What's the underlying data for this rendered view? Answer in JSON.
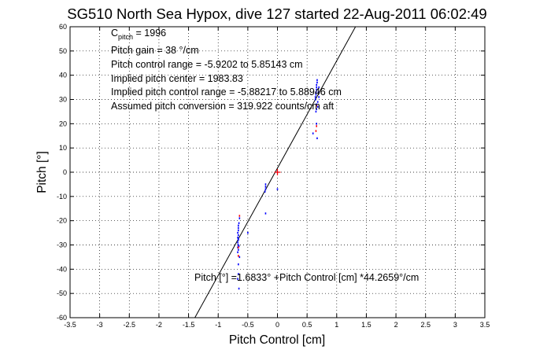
{
  "chart_data": {
    "type": "scatter",
    "title": "SG510 North Sea Hypox, dive 127 started 22-Aug-2011 06:02:49",
    "xlabel": "Pitch Control [cm]",
    "ylabel": "Pitch [°]",
    "xlim": [
      -3.5,
      3.5
    ],
    "ylim": [
      -60,
      60
    ],
    "x_ticks": [
      "-3.5",
      "-3",
      "-2.5",
      "-2",
      "-1.5",
      "-1",
      "-0.5",
      "0",
      "0.5",
      "1",
      "1.5",
      "2",
      "2.5",
      "3",
      "3.5"
    ],
    "y_ticks": [
      "-60",
      "-50",
      "-40",
      "-30",
      "-20",
      "-10",
      "0",
      "10",
      "20",
      "30",
      "40",
      "50",
      "60"
    ],
    "grid": true,
    "annotations": {
      "c_pitch_main": "C",
      "c_pitch_sub": "pitch",
      "c_pitch_value": " = 1996",
      "pitch_gain": "Pitch gain = 38 °/cm",
      "control_range": "Pitch control range = -5.9202 to 5.85143 cm",
      "implied_center": "Implied pitch center = 1983.83",
      "implied_range": "Implied pitch control range = -5.88217 to 5.88946 cm",
      "conversion": "Assumed pitch conversion = 319.922 counts/cm aft",
      "fit_equation": "Pitch [°] =1.6833° +Pitch Control [cm] *44.2659°/cm"
    },
    "fit_line": {
      "intercept": 1.6833,
      "slope": 44.2659
    },
    "center_marker": {
      "x": 0,
      "y": 0
    },
    "series": [
      {
        "color": "#0000ff",
        "marker": "dot",
        "points": [
          [
            -0.66,
            -22
          ],
          [
            -0.66,
            -23
          ],
          [
            -0.66,
            -24
          ],
          [
            -0.67,
            -25
          ],
          [
            -0.66,
            -26
          ],
          [
            -0.67,
            -27
          ],
          [
            -0.66,
            -28
          ],
          [
            -0.67,
            -29
          ],
          [
            -0.66,
            -30
          ],
          [
            -0.67,
            -31
          ],
          [
            -0.66,
            -32
          ],
          [
            -0.67,
            -33
          ],
          [
            -0.65,
            -21
          ],
          [
            -0.66,
            -27.5
          ],
          [
            -0.65,
            -30.5
          ],
          [
            -0.64,
            -35
          ],
          [
            -0.66,
            -38
          ],
          [
            -0.66,
            -42
          ],
          [
            -0.67,
            -44
          ],
          [
            -0.65,
            -48
          ],
          [
            -0.64,
            -19
          ],
          [
            -0.5,
            -25
          ],
          [
            -0.2,
            -5
          ],
          [
            -0.2,
            -6
          ],
          [
            -0.2,
            -7
          ],
          [
            -0.21,
            -8
          ],
          [
            -0.2,
            -17
          ],
          [
            0.0,
            0
          ],
          [
            0.0,
            -7
          ],
          [
            0.64,
            30
          ],
          [
            0.64,
            31
          ],
          [
            0.65,
            32
          ],
          [
            0.65,
            33
          ],
          [
            0.66,
            34
          ],
          [
            0.66,
            35
          ],
          [
            0.66,
            36
          ],
          [
            0.67,
            37
          ],
          [
            0.67,
            38
          ],
          [
            0.68,
            29
          ],
          [
            0.68,
            27
          ],
          [
            0.66,
            26
          ],
          [
            0.65,
            25
          ],
          [
            0.66,
            28
          ],
          [
            0.69,
            33
          ],
          [
            0.7,
            35
          ],
          [
            0.7,
            31
          ],
          [
            0.6,
            16
          ],
          [
            0.67,
            14
          ],
          [
            0.66,
            20
          ]
        ]
      },
      {
        "color": "#ff0000",
        "marker": "dot",
        "points": [
          [
            -0.64,
            -18
          ],
          [
            -0.66,
            -31
          ],
          [
            -0.66,
            -34.5
          ],
          [
            0.65,
            17
          ],
          [
            0.66,
            19
          ],
          [
            0.66,
            27.5
          ]
        ]
      }
    ]
  }
}
